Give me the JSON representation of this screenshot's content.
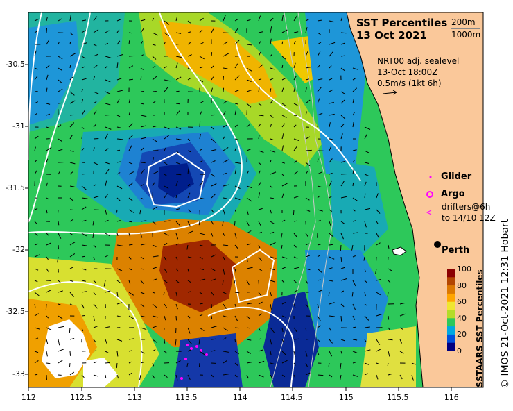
{
  "title": "SST Percentiles",
  "date": "13 Oct 2021",
  "contours": {
    "c200": "200m",
    "c1000": "1000m"
  },
  "currents": {
    "line1": "NRT00 adj. sealevel",
    "line2": "13-Oct 18:00Z",
    "scale": "0.5m/s (1kt 6h)"
  },
  "legend": {
    "glider": "Glider",
    "argo": "Argo",
    "drifters1": "drifters@6h",
    "drifters2": "to 14/10 12Z"
  },
  "place": "Perth",
  "colorbar": {
    "label": "SSTAARS SST Percentiles",
    "ticks": [
      "100",
      "80",
      "60",
      "40",
      "20",
      "0"
    ],
    "colors": [
      "#000080",
      "#0050dc",
      "#00a8e0",
      "#2dc85a",
      "#b4dc28",
      "#f0e630",
      "#ffa500",
      "#dc7800",
      "#b44600",
      "#8c0000"
    ]
  },
  "credit": "© IMOS 21-Oct-2021 12:31 Hobart",
  "axes": {
    "lon": [
      "112",
      "112.5",
      "113",
      "113.5",
      "114",
      "114.5",
      "115",
      "115.5",
      "116"
    ],
    "lat": [
      "-30.5",
      "-31",
      "-31.5",
      "-32",
      "-32.5",
      "-33"
    ]
  },
  "colors": {
    "land": "#fac89a",
    "ocean_base": "#2dc85a"
  }
}
